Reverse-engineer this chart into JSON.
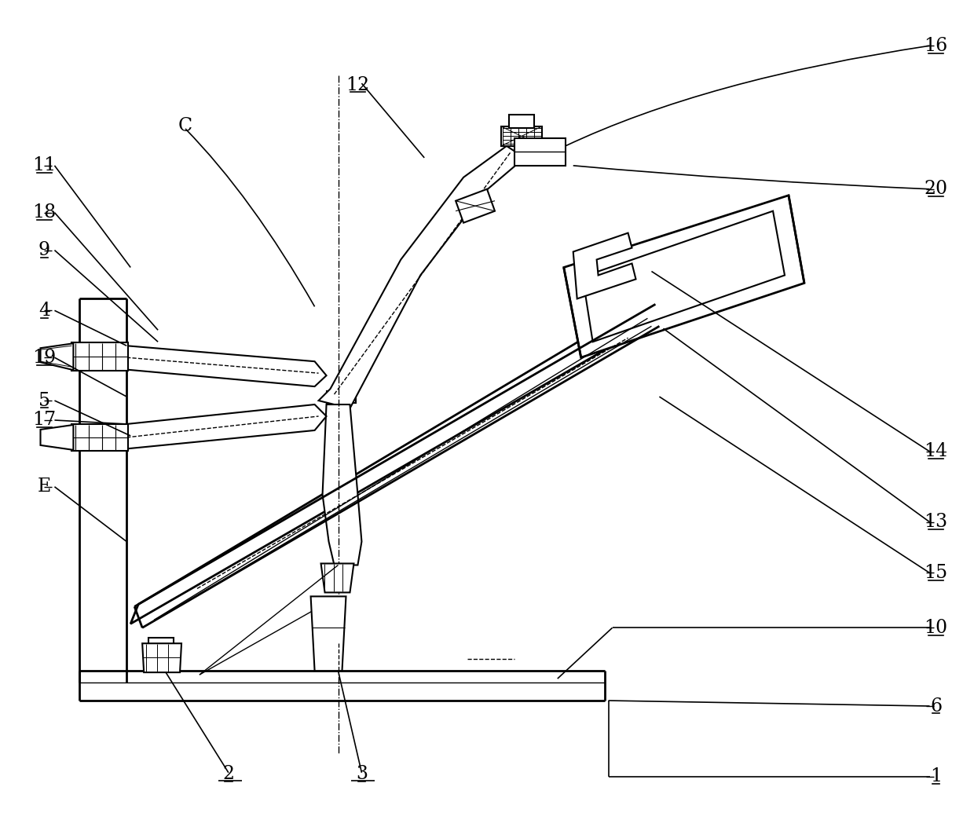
{
  "bg_color": "#ffffff",
  "line_color": "#000000",
  "fig_width": 12.4,
  "fig_height": 10.53,
  "dpi": 100
}
